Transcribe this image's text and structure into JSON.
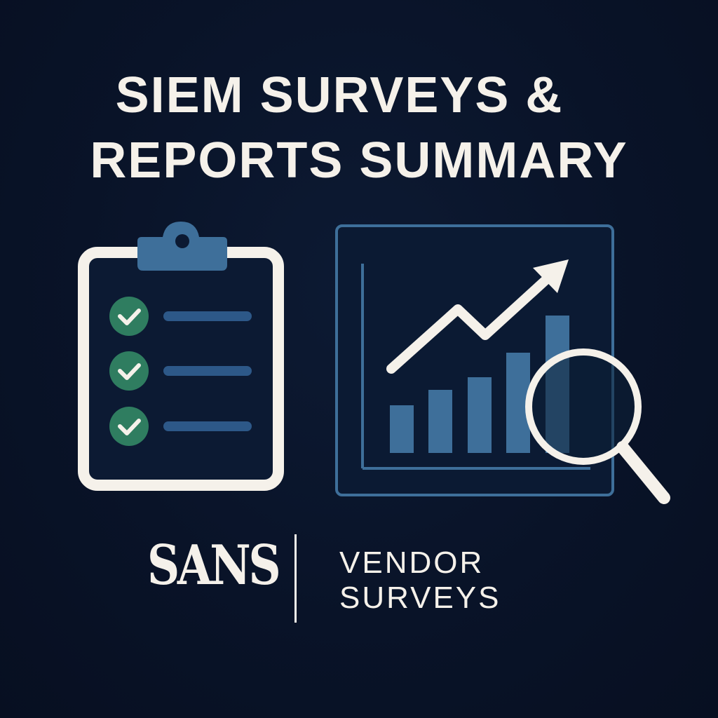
{
  "title": {
    "line1": "SIEM SURVEYS &",
    "line2": "REPORTS SUMMARY"
  },
  "icons": {
    "clipboard": "clipboard-checklist-icon",
    "chart": "bar-chart-trend-icon",
    "magnifier": "magnifying-glass-icon"
  },
  "logo": {
    "brand": "SANS"
  },
  "vendor": {
    "line1": "VENDOR",
    "line2": "SURVEYS"
  },
  "colors": {
    "background": "#0a1428",
    "cream": "#f5f1ea",
    "blue": "#3e6f9a",
    "green_check": "#2f7d60"
  }
}
